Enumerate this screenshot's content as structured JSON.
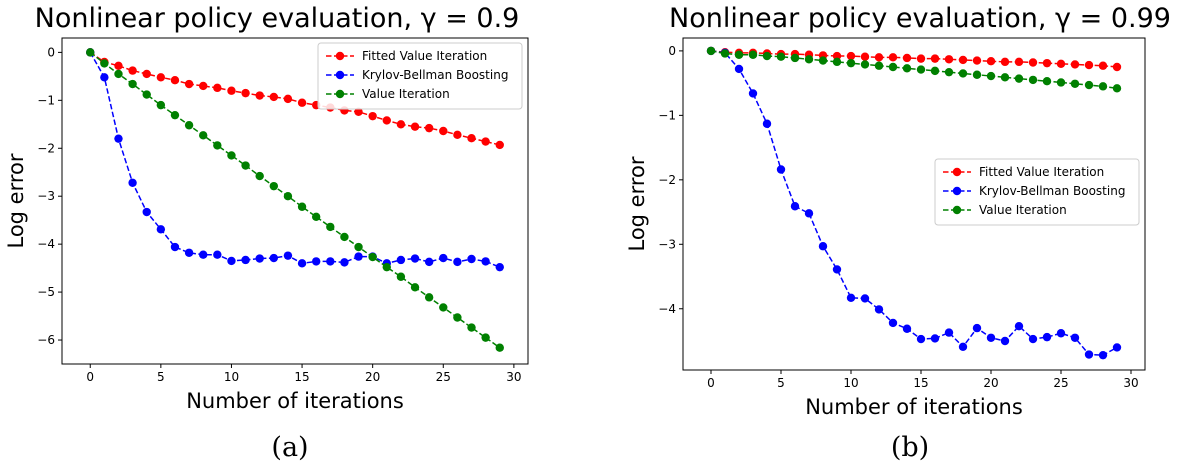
{
  "chart_data": [
    {
      "type": "line",
      "title": "Nonlinear policy evaluation, γ = 0.9",
      "xlabel": "Number of iterations",
      "ylabel": "Log error",
      "caption": "(a)",
      "xlim": [
        -2,
        31
      ],
      "ylim": [
        -6.5,
        0.3
      ],
      "xticks": [
        0,
        5,
        10,
        15,
        20,
        25,
        30
      ],
      "yticks": [
        0,
        -1,
        -2,
        -3,
        -4,
        -5,
        -6
      ],
      "xtick_labels": [
        "0",
        "5",
        "10",
        "15",
        "20",
        "25",
        "30"
      ],
      "ytick_labels": [
        "0",
        "−1",
        "−2",
        "−3",
        "−4",
        "−5",
        "−6"
      ],
      "legend_position": "top-right",
      "grid": false,
      "x": [
        0,
        1,
        2,
        3,
        4,
        5,
        6,
        7,
        8,
        9,
        10,
        11,
        12,
        13,
        14,
        15,
        16,
        17,
        18,
        19,
        20,
        21,
        22,
        23,
        24,
        25,
        26,
        27,
        28,
        29
      ],
      "series": [
        {
          "name": "Fitted Value Iteration",
          "color": "#ff0000",
          "values": [
            0,
            -0.2,
            -0.28,
            -0.38,
            -0.45,
            -0.52,
            -0.58,
            -0.66,
            -0.7,
            -0.74,
            -0.8,
            -0.85,
            -0.9,
            -0.93,
            -0.97,
            -1.05,
            -1.1,
            -1.15,
            -1.21,
            -1.24,
            -1.33,
            -1.42,
            -1.5,
            -1.55,
            -1.58,
            -1.64,
            -1.72,
            -1.79,
            -1.86,
            -1.93
          ]
        },
        {
          "name": "Krylov-Bellman Boosting",
          "color": "#0000ff",
          "values": [
            0,
            -0.52,
            -1.8,
            -2.72,
            -3.33,
            -3.69,
            -4.06,
            -4.18,
            -4.22,
            -4.22,
            -4.35,
            -4.33,
            -4.3,
            -4.29,
            -4.24,
            -4.4,
            -4.36,
            -4.36,
            -4.38,
            -4.26,
            -4.26,
            -4.4,
            -4.33,
            -4.3,
            -4.37,
            -4.29,
            -4.37,
            -4.31,
            -4.36,
            -4.48
          ]
        },
        {
          "name": "Value Iteration",
          "color": "#008000",
          "values": [
            0,
            -0.23,
            -0.45,
            -0.66,
            -0.88,
            -1.1,
            -1.31,
            -1.52,
            -1.73,
            -1.94,
            -2.15,
            -2.36,
            -2.58,
            -2.79,
            -3.0,
            -3.22,
            -3.43,
            -3.64,
            -3.85,
            -4.06,
            -4.27,
            -4.48,
            -4.68,
            -4.9,
            -5.11,
            -5.32,
            -5.53,
            -5.74,
            -5.95,
            -6.16
          ]
        }
      ]
    },
    {
      "type": "line",
      "title": "Nonlinear policy evaluation, γ = 0.99",
      "xlabel": "Number of iterations",
      "ylabel": "Log error",
      "caption": "(b)",
      "xlim": [
        -2,
        31
      ],
      "ylim": [
        -4.95,
        0.2
      ],
      "xticks": [
        0,
        5,
        10,
        15,
        20,
        25,
        30
      ],
      "yticks": [
        0,
        -1,
        -2,
        -3,
        -4
      ],
      "xtick_labels": [
        "0",
        "5",
        "10",
        "15",
        "20",
        "25",
        "30"
      ],
      "ytick_labels": [
        "0",
        "−1",
        "−2",
        "−3",
        "−4"
      ],
      "legend_position": "center-right",
      "grid": false,
      "x": [
        0,
        1,
        2,
        3,
        4,
        5,
        6,
        7,
        8,
        9,
        10,
        11,
        12,
        13,
        14,
        15,
        16,
        17,
        18,
        19,
        20,
        21,
        22,
        23,
        24,
        25,
        26,
        27,
        28,
        29
      ],
      "series": [
        {
          "name": "Fitted Value Iteration",
          "color": "#ff0000",
          "values": [
            0,
            -0.02,
            -0.03,
            -0.03,
            -0.04,
            -0.05,
            -0.05,
            -0.06,
            -0.07,
            -0.08,
            -0.08,
            -0.09,
            -0.1,
            -0.1,
            -0.11,
            -0.12,
            -0.12,
            -0.13,
            -0.14,
            -0.15,
            -0.16,
            -0.17,
            -0.17,
            -0.18,
            -0.19,
            -0.2,
            -0.21,
            -0.22,
            -0.23,
            -0.25
          ]
        },
        {
          "name": "Krylov-Bellman Boosting",
          "color": "#0000ff",
          "values": [
            0,
            -0.03,
            -0.28,
            -0.66,
            -1.13,
            -1.84,
            -2.41,
            -2.52,
            -3.03,
            -3.39,
            -3.83,
            -3.84,
            -4.01,
            -4.22,
            -4.31,
            -4.47,
            -4.46,
            -4.37,
            -4.59,
            -4.3,
            -4.45,
            -4.5,
            -4.27,
            -4.47,
            -4.44,
            -4.38,
            -4.45,
            -4.71,
            -4.72,
            -4.6
          ]
        },
        {
          "name": "Value Iteration",
          "color": "#008000",
          "values": [
            0,
            -0.04,
            -0.06,
            -0.06,
            -0.08,
            -0.09,
            -0.11,
            -0.13,
            -0.15,
            -0.17,
            -0.19,
            -0.21,
            -0.23,
            -0.25,
            -0.27,
            -0.29,
            -0.31,
            -0.33,
            -0.35,
            -0.37,
            -0.39,
            -0.41,
            -0.43,
            -0.45,
            -0.47,
            -0.49,
            -0.51,
            -0.53,
            -0.55,
            -0.58
          ]
        }
      ]
    }
  ]
}
